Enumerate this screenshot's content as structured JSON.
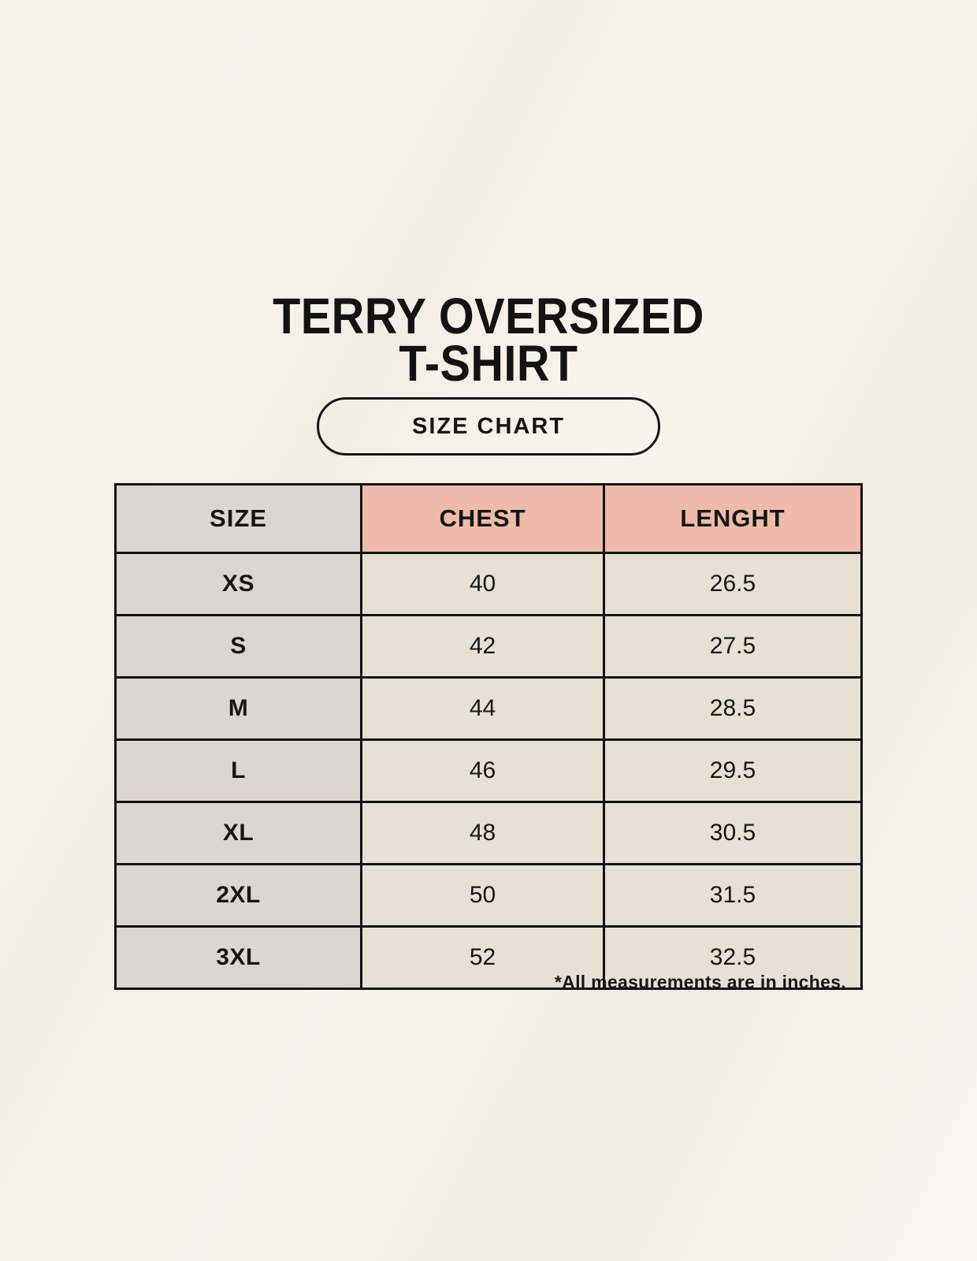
{
  "page": {
    "title_line1": "TERRY OVERSIZED",
    "title_line2": "T-SHIRT",
    "badge_label": "SIZE CHART",
    "footnote": "*All measurements are in inches."
  },
  "table": {
    "columns": [
      "SIZE",
      "CHEST",
      "LENGHT"
    ],
    "rows": [
      {
        "size": "XS",
        "chest": "40",
        "length": "26.5"
      },
      {
        "size": "S",
        "chest": "42",
        "length": "27.5"
      },
      {
        "size": "M",
        "chest": "44",
        "length": "28.5"
      },
      {
        "size": "L",
        "chest": "46",
        "length": "29.5"
      },
      {
        "size": "XL",
        "chest": "48",
        "length": "30.5"
      },
      {
        "size": "2XL",
        "chest": "50",
        "length": "31.5"
      },
      {
        "size": "3XL",
        "chest": "52",
        "length": "32.5"
      }
    ]
  },
  "colors": {
    "background": "#f5f1e9",
    "header_size_bg": "#ddd5cf",
    "header_measure_bg": "#eebbaa",
    "size_column_bg": "#ddd5cf",
    "value_cell_bg": "#e8e0d5",
    "border": "#131313",
    "text": "#161616"
  }
}
